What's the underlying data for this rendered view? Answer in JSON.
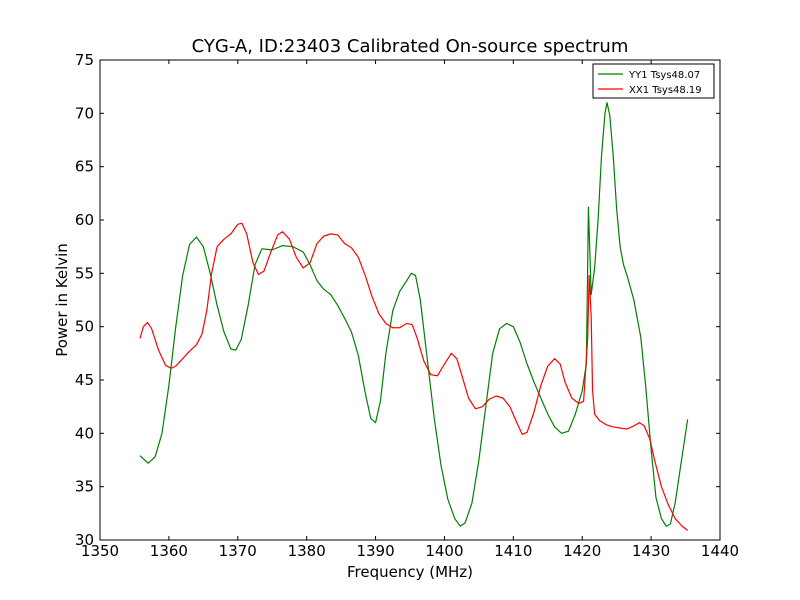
{
  "chart_data": {
    "type": "line",
    "title": "CYG-A, ID:23403 Calibrated On-source spectrum",
    "xlabel": "Frequency (MHz)",
    "ylabel": "Power in Kelvin",
    "xlim": [
      1350,
      1440
    ],
    "ylim": [
      30,
      75
    ],
    "x_ticks": [
      1350,
      1360,
      1370,
      1380,
      1390,
      1400,
      1410,
      1420,
      1430,
      1440
    ],
    "y_ticks": [
      30,
      35,
      40,
      45,
      50,
      55,
      60,
      65,
      70,
      75
    ],
    "grid": false,
    "legend": "top-right",
    "series": [
      {
        "name": "YY1 Tsys48.07",
        "color": "#008000",
        "points": [
          [
            1355.8,
            37.9
          ],
          [
            1357.0,
            37.2
          ],
          [
            1358.0,
            37.8
          ],
          [
            1359.0,
            40.0
          ],
          [
            1360.0,
            44.5
          ],
          [
            1361.0,
            50.0
          ],
          [
            1362.0,
            54.8
          ],
          [
            1363.0,
            57.7
          ],
          [
            1364.0,
            58.4
          ],
          [
            1365.0,
            57.5
          ],
          [
            1366.0,
            55.0
          ],
          [
            1367.0,
            52.0
          ],
          [
            1368.0,
            49.5
          ],
          [
            1369.0,
            47.9
          ],
          [
            1369.7,
            47.8
          ],
          [
            1370.5,
            48.8
          ],
          [
            1371.5,
            52.0
          ],
          [
            1372.5,
            55.8
          ],
          [
            1373.5,
            57.3
          ],
          [
            1375.0,
            57.2
          ],
          [
            1376.5,
            57.6
          ],
          [
            1378.0,
            57.5
          ],
          [
            1379.5,
            57.0
          ],
          [
            1380.5,
            55.8
          ],
          [
            1381.5,
            54.3
          ],
          [
            1382.5,
            53.5
          ],
          [
            1383.5,
            53.0
          ],
          [
            1384.5,
            52.0
          ],
          [
            1385.5,
            50.8
          ],
          [
            1386.5,
            49.5
          ],
          [
            1387.5,
            47.3
          ],
          [
            1388.5,
            43.8
          ],
          [
            1389.3,
            41.4
          ],
          [
            1390.0,
            41.0
          ],
          [
            1390.7,
            43.0
          ],
          [
            1391.5,
            47.5
          ],
          [
            1392.5,
            51.5
          ],
          [
            1393.5,
            53.3
          ],
          [
            1394.5,
            54.3
          ],
          [
            1395.2,
            55.0
          ],
          [
            1395.8,
            54.8
          ],
          [
            1396.5,
            52.5
          ],
          [
            1397.5,
            47.0
          ],
          [
            1398.5,
            41.5
          ],
          [
            1399.5,
            37.0
          ],
          [
            1400.5,
            33.8
          ],
          [
            1401.5,
            32.0
          ],
          [
            1402.3,
            31.3
          ],
          [
            1403.0,
            31.6
          ],
          [
            1404.0,
            33.5
          ],
          [
            1405.0,
            37.5
          ],
          [
            1406.0,
            42.5
          ],
          [
            1407.0,
            47.5
          ],
          [
            1408.0,
            49.8
          ],
          [
            1409.0,
            50.3
          ],
          [
            1410.0,
            50.0
          ],
          [
            1411.0,
            48.5
          ],
          [
            1412.0,
            46.5
          ],
          [
            1413.0,
            44.8
          ],
          [
            1414.0,
            43.3
          ],
          [
            1415.0,
            41.8
          ],
          [
            1416.0,
            40.6
          ],
          [
            1417.0,
            40.0
          ],
          [
            1418.0,
            40.2
          ],
          [
            1419.0,
            41.8
          ],
          [
            1420.0,
            44.0
          ],
          [
            1420.6,
            46.5
          ],
          [
            1420.9,
            61.2
          ],
          [
            1421.3,
            53.0
          ],
          [
            1421.8,
            55.5
          ],
          [
            1422.3,
            60.0
          ],
          [
            1422.8,
            66.0
          ],
          [
            1423.3,
            70.0
          ],
          [
            1423.6,
            71.0
          ],
          [
            1424.0,
            69.8
          ],
          [
            1424.5,
            66.0
          ],
          [
            1425.0,
            61.0
          ],
          [
            1425.5,
            57.5
          ],
          [
            1426.0,
            55.8
          ],
          [
            1426.5,
            54.8
          ],
          [
            1427.5,
            52.5
          ],
          [
            1428.5,
            49.0
          ],
          [
            1429.2,
            44.5
          ],
          [
            1430.0,
            38.5
          ],
          [
            1430.7,
            34.0
          ],
          [
            1431.5,
            32.0
          ],
          [
            1432.2,
            31.3
          ],
          [
            1432.8,
            31.5
          ],
          [
            1433.5,
            33.5
          ],
          [
            1434.3,
            37.0
          ],
          [
            1435.3,
            41.3
          ]
        ]
      },
      {
        "name": "XX1 Tsys48.19",
        "color": "#ff0000",
        "points": [
          [
            1355.8,
            48.9
          ],
          [
            1356.3,
            50.0
          ],
          [
            1356.9,
            50.4
          ],
          [
            1357.5,
            49.8
          ],
          [
            1358.5,
            47.8
          ],
          [
            1359.5,
            46.4
          ],
          [
            1360.3,
            46.1
          ],
          [
            1361.0,
            46.3
          ],
          [
            1362.0,
            47.0
          ],
          [
            1363.0,
            47.7
          ],
          [
            1364.0,
            48.3
          ],
          [
            1364.8,
            49.3
          ],
          [
            1365.5,
            51.5
          ],
          [
            1366.2,
            55.0
          ],
          [
            1367.0,
            57.5
          ],
          [
            1368.0,
            58.2
          ],
          [
            1369.0,
            58.7
          ],
          [
            1370.0,
            59.6
          ],
          [
            1370.6,
            59.7
          ],
          [
            1371.3,
            58.7
          ],
          [
            1372.2,
            56.0
          ],
          [
            1373.0,
            54.9
          ],
          [
            1373.8,
            55.2
          ],
          [
            1374.8,
            57.0
          ],
          [
            1375.8,
            58.6
          ],
          [
            1376.5,
            58.9
          ],
          [
            1377.5,
            58.2
          ],
          [
            1378.5,
            56.5
          ],
          [
            1379.5,
            55.5
          ],
          [
            1380.5,
            56.0
          ],
          [
            1381.5,
            57.8
          ],
          [
            1382.5,
            58.5
          ],
          [
            1383.5,
            58.7
          ],
          [
            1384.5,
            58.6
          ],
          [
            1385.5,
            57.8
          ],
          [
            1386.5,
            57.4
          ],
          [
            1387.5,
            56.5
          ],
          [
            1388.5,
            54.8
          ],
          [
            1389.5,
            52.8
          ],
          [
            1390.5,
            51.2
          ],
          [
            1391.5,
            50.3
          ],
          [
            1392.5,
            49.9
          ],
          [
            1393.5,
            49.9
          ],
          [
            1394.5,
            50.3
          ],
          [
            1395.3,
            50.2
          ],
          [
            1396.0,
            49.0
          ],
          [
            1397.0,
            46.8
          ],
          [
            1398.0,
            45.5
          ],
          [
            1399.0,
            45.4
          ],
          [
            1400.0,
            46.5
          ],
          [
            1401.0,
            47.5
          ],
          [
            1401.8,
            47.0
          ],
          [
            1402.5,
            45.5
          ],
          [
            1403.5,
            43.3
          ],
          [
            1404.5,
            42.3
          ],
          [
            1405.5,
            42.5
          ],
          [
            1406.5,
            43.2
          ],
          [
            1407.5,
            43.5
          ],
          [
            1408.5,
            43.3
          ],
          [
            1409.5,
            42.5
          ],
          [
            1410.5,
            41.0
          ],
          [
            1411.3,
            39.9
          ],
          [
            1412.0,
            40.1
          ],
          [
            1413.0,
            42.0
          ],
          [
            1414.0,
            44.5
          ],
          [
            1415.0,
            46.3
          ],
          [
            1416.0,
            47.0
          ],
          [
            1416.8,
            46.5
          ],
          [
            1417.5,
            44.8
          ],
          [
            1418.5,
            43.3
          ],
          [
            1419.5,
            42.8
          ],
          [
            1420.2,
            43.0
          ],
          [
            1420.8,
            49.0
          ],
          [
            1421.0,
            54.8
          ],
          [
            1421.3,
            51.0
          ],
          [
            1421.5,
            44.0
          ],
          [
            1421.8,
            41.8
          ],
          [
            1422.5,
            41.2
          ],
          [
            1423.5,
            40.8
          ],
          [
            1424.5,
            40.6
          ],
          [
            1425.5,
            40.5
          ],
          [
            1426.5,
            40.4
          ],
          [
            1427.5,
            40.7
          ],
          [
            1428.3,
            41.0
          ],
          [
            1429.0,
            40.7
          ],
          [
            1429.8,
            39.5
          ],
          [
            1430.5,
            37.5
          ],
          [
            1431.5,
            35.0
          ],
          [
            1432.5,
            33.3
          ],
          [
            1433.5,
            32.0
          ],
          [
            1434.5,
            31.3
          ],
          [
            1435.3,
            30.9
          ]
        ]
      }
    ]
  }
}
